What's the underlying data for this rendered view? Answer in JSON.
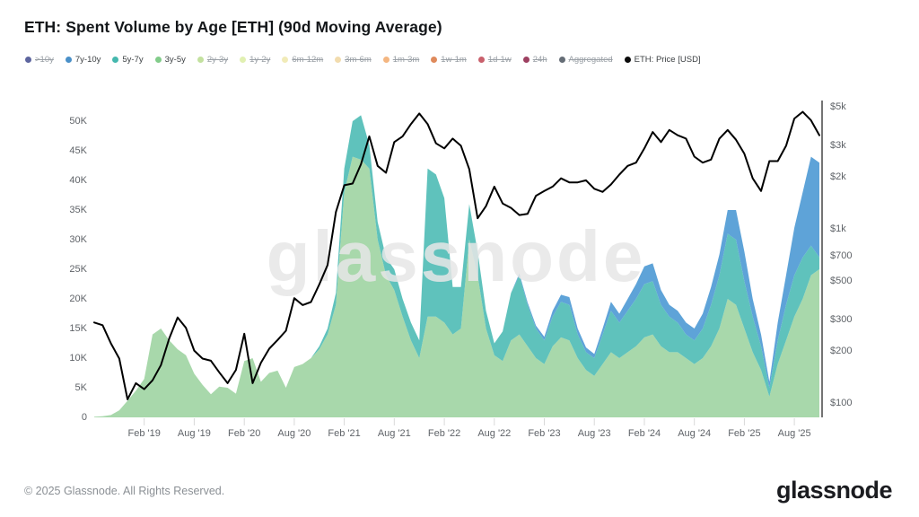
{
  "header": {
    "title": "ETH: Spent Volume by Age [ETH] (90d Moving Average)"
  },
  "legend": {
    "items": [
      {
        "label": ">10y",
        "color": "#414a8e",
        "struck": true
      },
      {
        "label": "7y-10y",
        "color": "#4a90c8",
        "struck": false
      },
      {
        "label": "5y-7y",
        "color": "#45b8ae",
        "struck": false
      },
      {
        "label": "3y-5y",
        "color": "#82cc8a",
        "struck": false
      },
      {
        "label": "2y-3y",
        "color": "#b8dc8e",
        "struck": true
      },
      {
        "label": "1y-2y",
        "color": "#dceda4",
        "struck": true
      },
      {
        "label": "6m-12m",
        "color": "#eee8ac",
        "struck": true
      },
      {
        "label": "3m-6m",
        "color": "#f0d6a0",
        "struck": true
      },
      {
        "label": "1m-3m",
        "color": "#f2a96b",
        "struck": true
      },
      {
        "label": "1w-1m",
        "color": "#d9763f",
        "struck": true
      },
      {
        "label": "1d-1w",
        "color": "#bf4452",
        "struck": true
      },
      {
        "label": "24h",
        "color": "#8c1f45",
        "struck": true
      },
      {
        "label": "Aggregated",
        "color": "#4a545e",
        "struck": true
      },
      {
        "label": "ETH: Price [USD]",
        "color": "#0a0a0a",
        "struck": false
      }
    ]
  },
  "watermark": "glassnode",
  "footer": {
    "copyright": "© 2025 Glassnode. All Rights Reserved.",
    "brand": "glassnode"
  },
  "chart_data": {
    "type": "area",
    "stacked": true,
    "title": "ETH: Spent Volume by Age [ETH] (90d Moving Average)",
    "x_unit": "month",
    "left_axis": {
      "unit": "ETH",
      "scale": "linear",
      "range_k": [
        0,
        50
      ],
      "ticks": [
        {
          "label": "0",
          "value_k": 0
        },
        {
          "label": "5K",
          "value_k": 5
        },
        {
          "label": "10K",
          "value_k": 10
        },
        {
          "label": "15K",
          "value_k": 15
        },
        {
          "label": "20K",
          "value_k": 20
        },
        {
          "label": "25K",
          "value_k": 25
        },
        {
          "label": "30K",
          "value_k": 30
        },
        {
          "label": "35K",
          "value_k": 35
        },
        {
          "label": "40K",
          "value_k": 40
        },
        {
          "label": "45K",
          "value_k": 45
        },
        {
          "label": "50K",
          "value_k": 50
        }
      ]
    },
    "right_axis": {
      "unit": "USD",
      "scale": "log",
      "ticks": [
        {
          "label": "$5k",
          "value": 5000
        },
        {
          "label": "$3k",
          "value": 3000
        },
        {
          "label": "$2k",
          "value": 2000
        },
        {
          "label": "$1k",
          "value": 1000
        },
        {
          "label": "$700",
          "value": 700
        },
        {
          "label": "$500",
          "value": 500
        },
        {
          "label": "$300",
          "value": 300
        },
        {
          "label": "$200",
          "value": 200
        },
        {
          "label": "$100",
          "value": 100
        }
      ]
    },
    "x_ticks": [
      {
        "label": "Feb '19",
        "month_index": 6
      },
      {
        "label": "Aug '19",
        "month_index": 12
      },
      {
        "label": "Feb '20",
        "month_index": 18
      },
      {
        "label": "Aug '20",
        "month_index": 24
      },
      {
        "label": "Feb '21",
        "month_index": 30
      },
      {
        "label": "Aug '21",
        "month_index": 36
      },
      {
        "label": "Feb '22",
        "month_index": 42
      },
      {
        "label": "Aug '22",
        "month_index": 48
      },
      {
        "label": "Feb '23",
        "month_index": 54
      },
      {
        "label": "Aug '23",
        "month_index": 60
      },
      {
        "label": "Feb '24",
        "month_index": 66
      },
      {
        "label": "Aug '24",
        "month_index": 72
      },
      {
        "label": "Feb '25",
        "month_index": 78
      },
      {
        "label": "Aug '25",
        "month_index": 84
      }
    ],
    "months": [
      "2018-08",
      "2018-09",
      "2018-10",
      "2018-11",
      "2018-12",
      "2019-01",
      "2019-02",
      "2019-03",
      "2019-04",
      "2019-05",
      "2019-06",
      "2019-07",
      "2019-08",
      "2019-09",
      "2019-10",
      "2019-11",
      "2019-12",
      "2020-01",
      "2020-02",
      "2020-03",
      "2020-04",
      "2020-05",
      "2020-06",
      "2020-07",
      "2020-08",
      "2020-09",
      "2020-10",
      "2020-11",
      "2020-12",
      "2021-01",
      "2021-02",
      "2021-03",
      "2021-04",
      "2021-05",
      "2021-06",
      "2021-07",
      "2021-08",
      "2021-09",
      "2021-10",
      "2021-11",
      "2021-12",
      "2022-01",
      "2022-02",
      "2022-03",
      "2022-04",
      "2022-05",
      "2022-06",
      "2022-07",
      "2022-08",
      "2022-09",
      "2022-10",
      "2022-11",
      "2022-12",
      "2023-01",
      "2023-02",
      "2023-03",
      "2023-04",
      "2023-05",
      "2023-06",
      "2023-07",
      "2023-08",
      "2023-09",
      "2023-10",
      "2023-11",
      "2023-12",
      "2024-01",
      "2024-02",
      "2024-03",
      "2024-04",
      "2024-05",
      "2024-06",
      "2024-07",
      "2024-08",
      "2024-09",
      "2024-10",
      "2024-11",
      "2024-12",
      "2025-01",
      "2025-02",
      "2025-03",
      "2025-04",
      "2025-05",
      "2025-06",
      "2025-07",
      "2025-08",
      "2025-09",
      "2025-10",
      "2025-11"
    ],
    "series": [
      {
        "name": "3y-5y",
        "kind": "area",
        "axis": "left",
        "color": "#a8d8ab",
        "values_eth_k": [
          0.1,
          0.2,
          0.4,
          1.2,
          2.8,
          4.5,
          6.5,
          14,
          15,
          13,
          11.5,
          10.5,
          7.4,
          5.5,
          3.9,
          5.2,
          5,
          4,
          9.5,
          10,
          6,
          7.5,
          7.9,
          5,
          8.5,
          9,
          10,
          11.5,
          14,
          19,
          38,
          44,
          43.5,
          42,
          30,
          24,
          21.5,
          17,
          13,
          10,
          17,
          17,
          16,
          14,
          15,
          30,
          24,
          15,
          10.5,
          9.5,
          13,
          14,
          12,
          10,
          9,
          12,
          13.5,
          13,
          10,
          8,
          7,
          9,
          11,
          10,
          11,
          12,
          13.5,
          14,
          12,
          11,
          11,
          10,
          9,
          10,
          12,
          15,
          20,
          19,
          15,
          11,
          8,
          3.5,
          9,
          13,
          17,
          20,
          24,
          25
        ]
      },
      {
        "name": "5y-7y",
        "kind": "area",
        "axis": "left",
        "color": "#5fc2bc",
        "values_eth_k": [
          0,
          0,
          0,
          0,
          0,
          0,
          0,
          0,
          0,
          0,
          0,
          0,
          0,
          0,
          0,
          0,
          0,
          0,
          0,
          0,
          0,
          0,
          0,
          0,
          0,
          0,
          0,
          0.5,
          1,
          2,
          4,
          6,
          7.5,
          4,
          3,
          3,
          3.5,
          3,
          3,
          3,
          25,
          24,
          21,
          8,
          7,
          6,
          4,
          3,
          2,
          5,
          8,
          10,
          7,
          5,
          4,
          5,
          6,
          6,
          4,
          3,
          3,
          5,
          7,
          6,
          7,
          8,
          9,
          9,
          7,
          6,
          5,
          4,
          4,
          5,
          7,
          9,
          11,
          11,
          8,
          6,
          4,
          1.5,
          4,
          6,
          7,
          7,
          5,
          2
        ]
      },
      {
        "name": "7y-10y",
        "kind": "area",
        "axis": "left",
        "color": "#5ea3d8",
        "values_eth_k": [
          0,
          0,
          0,
          0,
          0,
          0,
          0,
          0,
          0,
          0,
          0,
          0,
          0,
          0,
          0,
          0,
          0,
          0,
          0,
          0,
          0,
          0,
          0,
          0,
          0,
          0,
          0,
          0,
          0,
          0,
          0,
          0,
          0,
          0,
          0,
          0,
          0,
          0,
          0,
          0,
          0,
          0,
          0,
          0,
          0,
          0,
          0,
          0,
          0,
          0,
          0,
          0.3,
          0.4,
          0.5,
          0.6,
          1,
          1.2,
          1.3,
          1,
          0.8,
          0.7,
          1,
          1.5,
          1.5,
          2,
          2.5,
          3,
          3,
          2.5,
          2,
          2,
          2,
          2,
          2.5,
          3,
          3.5,
          4,
          5,
          5,
          3,
          2,
          1,
          3,
          5,
          8,
          11,
          15,
          16
        ]
      },
      {
        "name": "ETH: Price [USD]",
        "kind": "line",
        "axis": "right",
        "color": "#000000",
        "values_usd": [
          290,
          280,
          220,
          180,
          105,
          130,
          120,
          135,
          165,
          235,
          310,
          270,
          200,
          180,
          175,
          150,
          130,
          155,
          250,
          130,
          170,
          205,
          230,
          260,
          400,
          365,
          380,
          480,
          620,
          1250,
          1780,
          1820,
          2350,
          3400,
          2300,
          2100,
          3150,
          3400,
          4000,
          4600,
          4000,
          3100,
          2900,
          3300,
          3000,
          2200,
          1150,
          1350,
          1750,
          1400,
          1320,
          1200,
          1220,
          1550,
          1650,
          1750,
          1950,
          1850,
          1850,
          1900,
          1700,
          1630,
          1800,
          2050,
          2300,
          2400,
          2900,
          3600,
          3150,
          3700,
          3450,
          3300,
          2600,
          2400,
          2500,
          3300,
          3700,
          3250,
          2700,
          1950,
          1650,
          2450,
          2450,
          3000,
          4300,
          4700,
          4200,
          3450
        ]
      }
    ]
  }
}
